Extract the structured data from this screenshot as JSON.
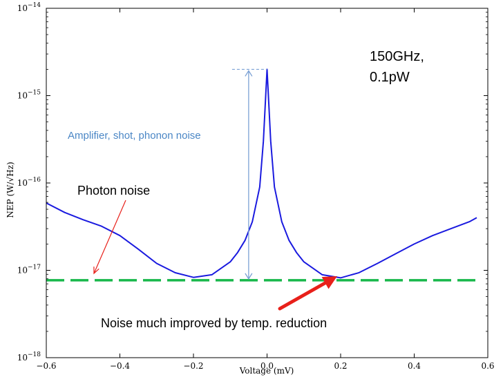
{
  "chart_data": {
    "type": "line",
    "title": "",
    "xlabel": "Voltage (mV)",
    "ylabel": "NEP (W/√Hz)",
    "xlim": [
      -0.6,
      0.6
    ],
    "ylim": [
      1e-18,
      1e-14
    ],
    "yscale": "log",
    "grid": false,
    "x_ticks": [
      "−0.6",
      "−0.4",
      "−0.2",
      "0.0",
      "0.2",
      "0.4",
      "0.6"
    ],
    "x_tick_values": [
      -0.6,
      -0.4,
      -0.2,
      0.0,
      0.2,
      0.4,
      0.6
    ],
    "y_ticks": [
      {
        "value": 1e-14,
        "base": "10",
        "exp": "−14"
      },
      {
        "value": 1e-15,
        "base": "10",
        "exp": "−15"
      },
      {
        "value": 1e-16,
        "base": "10",
        "exp": "−16"
      },
      {
        "value": 1e-17,
        "base": "10",
        "exp": "−17"
      },
      {
        "value": 1e-18,
        "base": "10",
        "exp": "−18"
      }
    ],
    "series": [
      {
        "color": "#1a1adf",
        "style": "solid",
        "x": [
          -0.6,
          -0.55,
          -0.5,
          -0.45,
          -0.4,
          -0.35,
          -0.3,
          -0.25,
          -0.2,
          -0.15,
          -0.1,
          -0.08,
          -0.06,
          -0.04,
          -0.02,
          -0.01,
          0.0,
          0.01,
          0.02,
          0.04,
          0.06,
          0.08,
          0.1,
          0.15,
          0.2,
          0.25,
          0.3,
          0.35,
          0.4,
          0.45,
          0.5,
          0.55,
          0.57
        ],
        "y": [
          5.9e-17,
          4.6e-17,
          3.8e-17,
          3.2e-17,
          2.5e-17,
          1.75e-17,
          1.2e-17,
          9.4e-18,
          8.3e-18,
          8.9e-18,
          1.25e-17,
          1.6e-17,
          2.2e-17,
          3.6e-17,
          9e-17,
          3e-16,
          2e-15,
          3e-16,
          9e-17,
          3.6e-17,
          2.2e-17,
          1.6e-17,
          1.25e-17,
          8.9e-18,
          8.2e-18,
          9.4e-18,
          1.2e-17,
          1.55e-17,
          2e-17,
          2.5e-17,
          3e-17,
          3.6e-17,
          4e-17
        ]
      },
      {
        "color": "#17b84a",
        "style": "dashed",
        "x": [
          -0.6,
          0.58
        ],
        "y": [
          7.7e-18,
          7.7e-18
        ]
      }
    ],
    "annotations": {
      "condition_line1": "150GHz,",
      "condition_line2": "0.1pW",
      "amplifier": "Amplifier, shot, phonon noise",
      "photon": "Photon noise",
      "improved": "Noise much improved by temp. reduction"
    },
    "colors": {
      "curve": "#1a1adf",
      "floor": "#17b84a",
      "amplifier_text": "#4a86c5",
      "bracket": "#7aa0d4",
      "arrow_red": "#e8201a"
    }
  }
}
